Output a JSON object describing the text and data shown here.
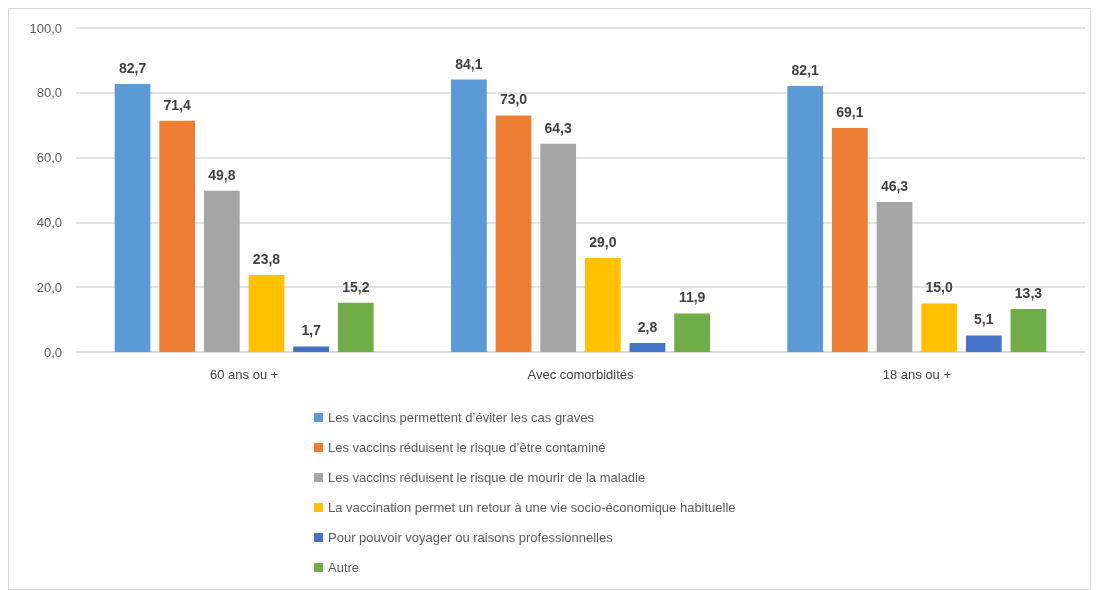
{
  "chart_data": {
    "type": "bar",
    "categories": [
      "60 ans ou +",
      "Avec comorbidités",
      "18 ans ou +"
    ],
    "series": [
      {
        "name": "Les vaccins permettent d’éviter les cas graves",
        "color": "#5b9bd5",
        "values": [
          82.7,
          84.1,
          82.1
        ],
        "value_labels": [
          "82,7",
          "84,1",
          "82,1"
        ]
      },
      {
        "name": "Les vaccins réduisent le risque d’être contaminé",
        "color": "#ed7d31",
        "values": [
          71.4,
          73.0,
          69.1
        ],
        "value_labels": [
          "71,4",
          "73,0",
          "69,1"
        ]
      },
      {
        "name": "Les vaccins réduisent le risque de mourir de la maladie",
        "color": "#a5a5a5",
        "values": [
          49.8,
          64.3,
          46.3
        ],
        "value_labels": [
          "49,8",
          "64,3",
          "46,3"
        ]
      },
      {
        "name": "La vaccination permet un retour à une vie socio-économique habituelle",
        "color": "#ffc000",
        "values": [
          23.8,
          29.0,
          15.0
        ],
        "value_labels": [
          "23,8",
          "29,0",
          "15,0"
        ]
      },
      {
        "name": "Pour pouvoir voyager ou raisons professionnelles",
        "color": "#4472c4",
        "values": [
          1.7,
          2.8,
          5.1
        ],
        "value_labels": [
          "1,7",
          "2,8",
          "5,1"
        ]
      },
      {
        "name": "Autre",
        "color": "#70ad47",
        "values": [
          15.2,
          11.9,
          13.3
        ],
        "value_labels": [
          "15,2",
          "11,9",
          "13,3"
        ]
      }
    ],
    "ylim": [
      0,
      100
    ],
    "yticks": [
      {
        "value": 0,
        "label": "0,0"
      },
      {
        "value": 20,
        "label": "20,0"
      },
      {
        "value": 40,
        "label": "40,0"
      },
      {
        "value": 60,
        "label": "60,0"
      },
      {
        "value": 80,
        "label": "80,0"
      },
      {
        "value": 100,
        "label": "100,0"
      }
    ],
    "grid": "y",
    "legend": "bottom"
  }
}
